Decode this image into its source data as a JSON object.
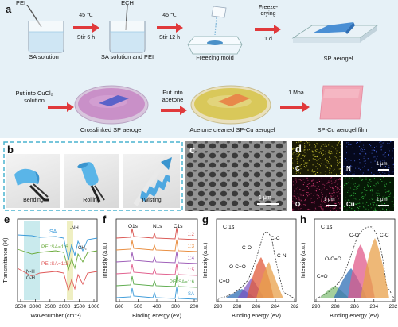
{
  "panel_letters": {
    "a": "a",
    "b": "b",
    "c": "c",
    "d": "d",
    "e": "e",
    "f": "f",
    "g": "g",
    "h": "h"
  },
  "panel_a": {
    "reagent_pei": "PEI",
    "reagent_ech": "ECH",
    "label_sa_solution": "SA solution",
    "step1_temp": "45 ℃",
    "step1_time": "Stir 6 h",
    "label_sa_pei": "SA solution and PEI",
    "step2_temp": "45 ℃",
    "step2_time": "Stir 12 h",
    "label_freezing": "Freezing mold",
    "step3_a": "Freeze-",
    "step3_b": "drying",
    "step3_time": "1 d",
    "label_sp_aerogel": "SP aerogel",
    "step4_a": "Put into CuCl₂",
    "step4_b": "solution",
    "label_crosslinked": "Crosslinked SP aerogel",
    "step5_a": "Put into",
    "step5_b": "acetone",
    "label_acetone_cleaned": "Acetone cleaned SP-Cu aerogel",
    "step6": "1 Mpa",
    "label_film": "SP-Cu aerogel film"
  },
  "panel_b": {
    "bending": "Bending",
    "rolling": "Rolling",
    "twisting": "Twisting"
  },
  "panel_c": {
    "scale": "1 μm"
  },
  "panel_d": {
    "c": "C",
    "n": "N",
    "o": "O",
    "cu": "Cu",
    "scale": "1 μm"
  },
  "colors": {
    "accent_red": "#e0393b",
    "dash_blue": "#4ab3cf",
    "bg_a": "#e6f1f7"
  },
  "chart_data": [
    {
      "type": "line",
      "panel": "e",
      "xlabel": "Wavenumber (cm⁻¹)",
      "ylabel": "Transmittance (%)",
      "x_ticks": [
        "3500",
        "3000",
        "2500",
        "2000",
        "1500",
        "1000"
      ],
      "series": [
        {
          "name": "SA",
          "color": "#3a9ad9"
        },
        {
          "name": "PEI:SA=1:6",
          "color": "#6aaa3a"
        },
        {
          "name": "PEI:SA=1:3",
          "color": "#e05a5a"
        }
      ],
      "annotations": [
        "-NH",
        "-CH₂",
        "N-H",
        "O-H"
      ]
    },
    {
      "type": "line",
      "panel": "f",
      "xlabel": "Binding energy (eV)",
      "ylabel": "Intensity (a.u.)",
      "x_ticks": [
        "600",
        "500",
        "400",
        "300",
        "200"
      ],
      "peaks": [
        "O1s",
        "N1s",
        "C1s"
      ],
      "series": [
        {
          "name": "1:2",
          "color": "#d9534f"
        },
        {
          "name": "1:3",
          "color": "#e88a3a"
        },
        {
          "name": "1:4",
          "color": "#9b59b6"
        },
        {
          "name": "1:5",
          "color": "#e05a8a"
        },
        {
          "name": "PEI:SA=1:6",
          "color": "#5aaa4a"
        },
        {
          "name": "SA",
          "color": "#3a9ad9"
        }
      ]
    },
    {
      "type": "area",
      "panel": "g",
      "title": "C 1s",
      "xlabel": "Binding energy (eV)",
      "ylabel": "Intensity (a.u.)",
      "x_ticks": [
        "290",
        "288",
        "286",
        "284",
        "282"
      ],
      "peak_labels": [
        "C-O",
        "C-C",
        "C-N",
        "O-C=O",
        "C=O"
      ]
    },
    {
      "type": "area",
      "panel": "h",
      "title": "C 1s",
      "xlabel": "Binding energy (eV)",
      "ylabel": "Intensity (a.u.)",
      "x_ticks": [
        "290",
        "288",
        "286",
        "284",
        "282"
      ],
      "peak_labels": [
        "C-O",
        "C-C",
        "O-C=O",
        "C=O"
      ]
    }
  ]
}
